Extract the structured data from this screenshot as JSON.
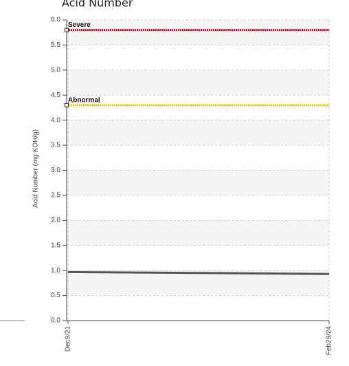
{
  "chart_data": {
    "type": "line",
    "title": "Acid Number",
    "y_label": "Acid Number (mg KOH/g)",
    "categories": [
      "Dec9/21",
      "Feb29/24"
    ],
    "series": [
      {
        "color": "#555555",
        "values": [
          0.97,
          0.93
        ]
      }
    ],
    "thresholds": [
      {
        "label": "Severe",
        "value": 5.8,
        "color": "#e8001c"
      },
      {
        "label": "Abnormal",
        "value": 4.3,
        "color": "#f2c400"
      }
    ],
    "ylim": [
      0,
      6
    ],
    "yticks": [
      {
        "value": 0,
        "label": "0.0"
      },
      0.5,
      {
        "value": 1,
        "label": "1.0"
      },
      1.5,
      {
        "value": 2,
        "label": "2.0"
      },
      2.5,
      {
        "value": 3,
        "label": "3.0"
      },
      3.5,
      {
        "value": 4,
        "label": "4.0"
      },
      4.5,
      {
        "value": 5,
        "label": "5.0"
      },
      5.5,
      {
        "value": 6,
        "label": "6.0"
      }
    ],
    "grid": true,
    "bands": true
  }
}
